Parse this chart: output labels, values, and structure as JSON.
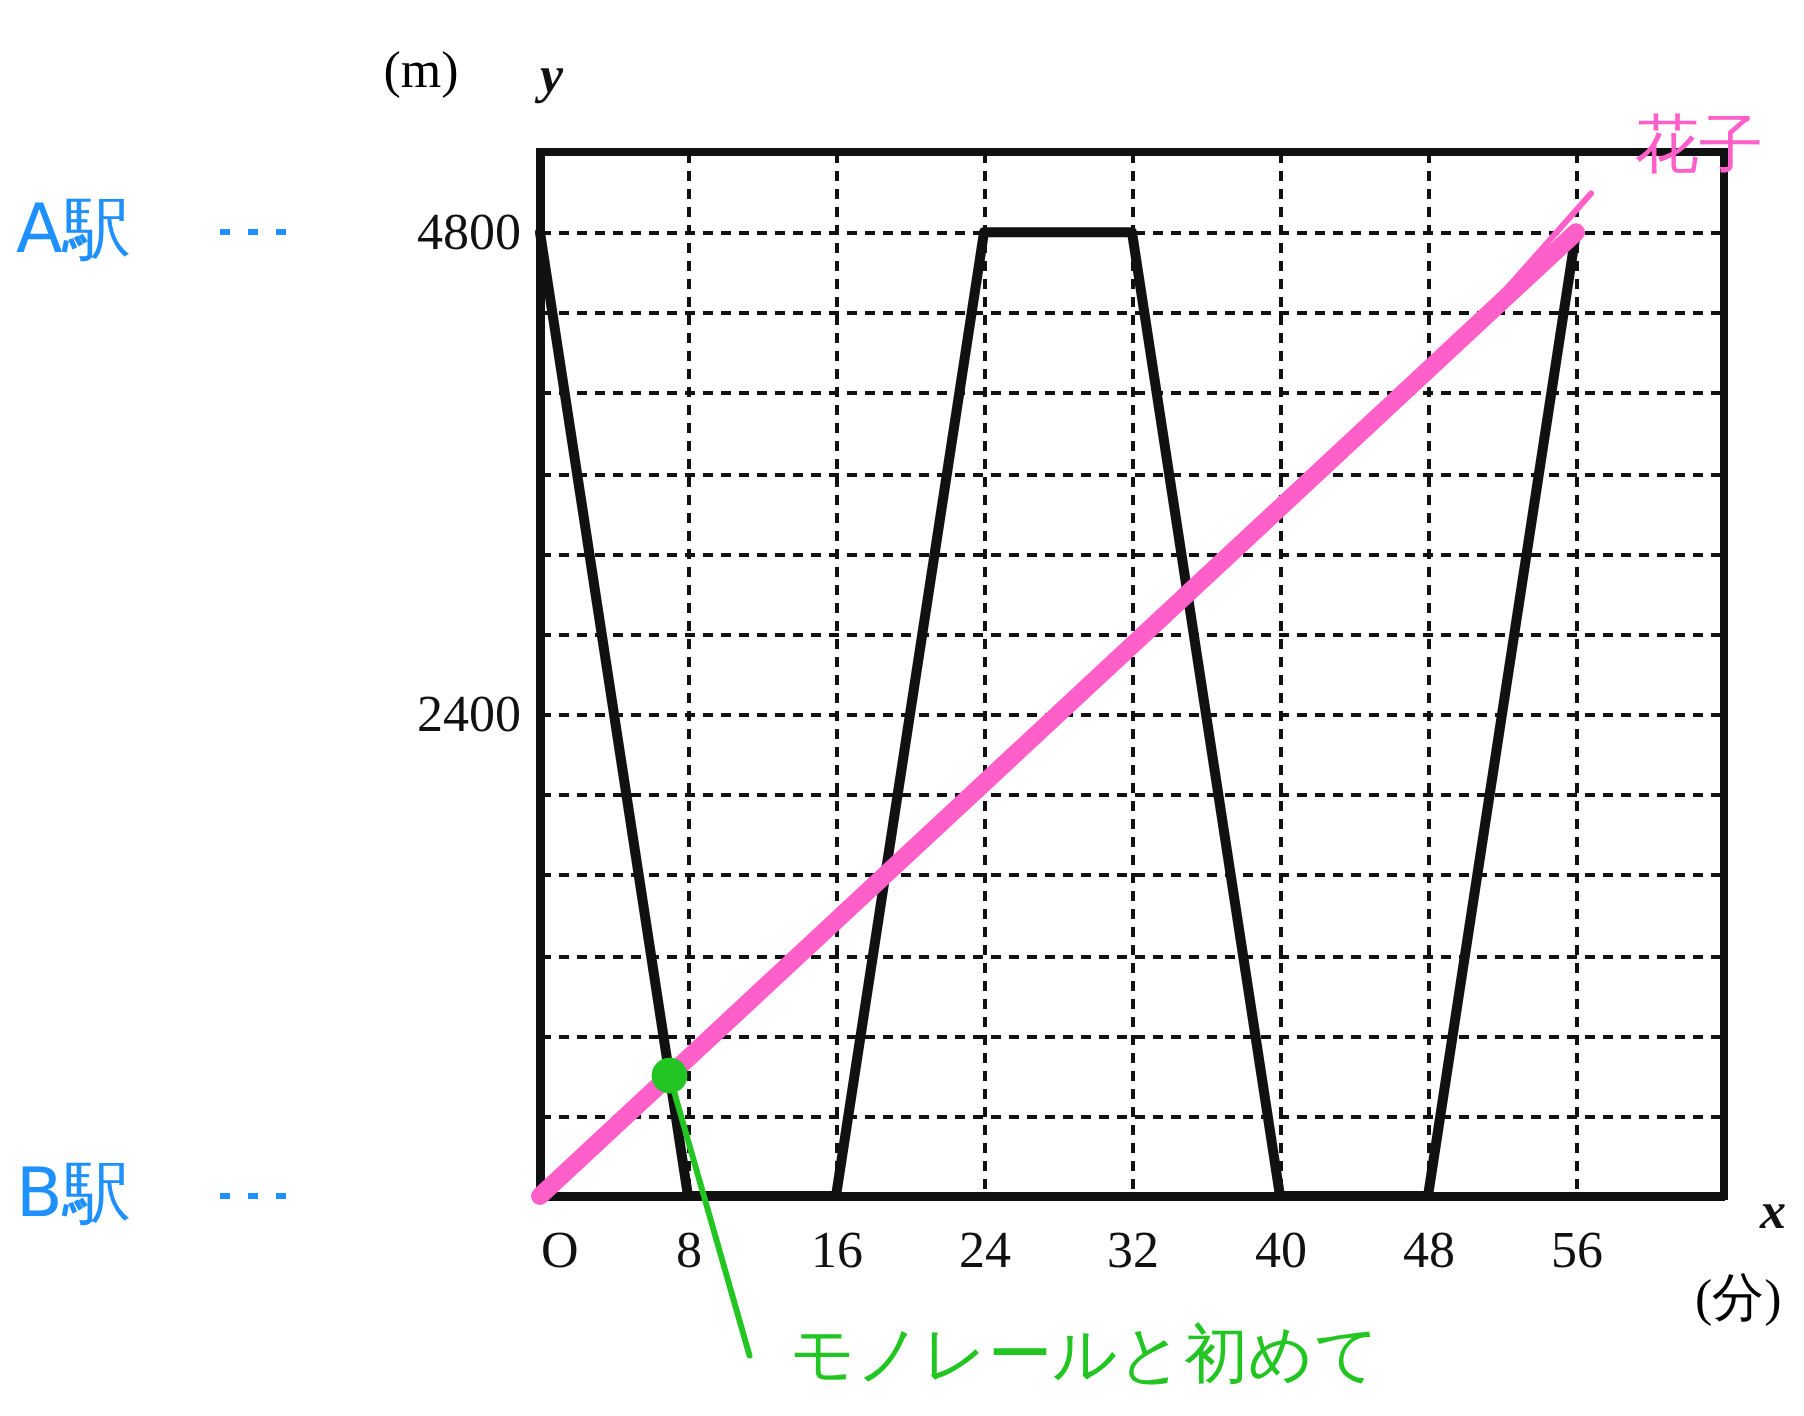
{
  "chart_data": {
    "type": "line",
    "xlabel": "(分)",
    "ylabel": "(m)",
    "x": [
      0,
      8,
      16,
      24,
      32,
      40,
      48,
      56
    ],
    "series": [
      {
        "color": "#111111",
        "values": [
          4800,
          0,
          0,
          4800,
          4800,
          0,
          0,
          4800
        ]
      },
      {
        "color": "#ff5fc8",
        "x": [
          0,
          56
        ],
        "values": [
          0,
          4800
        ]
      },
      {
        "type": "scatter",
        "color": "#22c522",
        "x": [
          7
        ],
        "values": [
          600
        ]
      }
    ],
    "xlim": [
      0,
      64
    ],
    "ylim": [
      0,
      5200
    ],
    "xticks": [
      {
        "value": 0,
        "label": "O"
      },
      8,
      16,
      24,
      32,
      40,
      48,
      56,
      {
        "value": 64,
        "label": null
      }
    ],
    "yticks": [
      {
        "value": 0,
        "label": null
      },
      {
        "value": 400,
        "label": null
      },
      {
        "value": 800,
        "label": null
      },
      {
        "value": 1200,
        "label": null
      },
      {
        "value": 1600,
        "label": null
      },
      {
        "value": 2000,
        "label": null
      },
      2400,
      {
        "value": 2800,
        "label": null
      },
      {
        "value": 3200,
        "label": null
      },
      {
        "value": 3600,
        "label": null
      },
      {
        "value": 4000,
        "label": null
      },
      {
        "value": 4400,
        "label": null
      },
      4800,
      {
        "value": 5200,
        "label": null
      }
    ],
    "grid": true,
    "line_style": "solid",
    "annotations": [
      "A駅",
      "B駅",
      {
        "text": "花子",
        "x": 50,
        "y": 4286
      },
      {
        "text": "モノレールと初めて",
        "x": 7,
        "y": 600
      },
      "y",
      "x"
    ]
  }
}
